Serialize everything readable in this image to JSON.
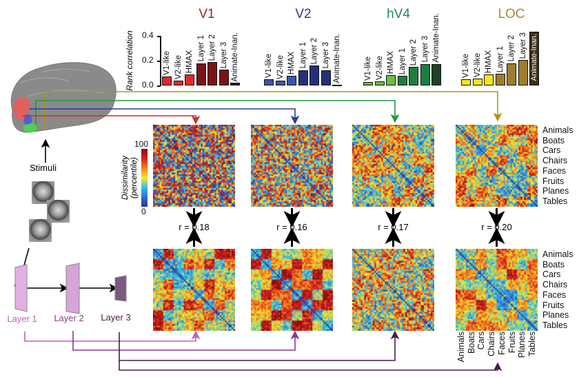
{
  "bar_charts": {
    "ylabel": "Rank correlation",
    "ticks": [
      "0.0",
      "0.2",
      "0.4"
    ],
    "ylim": [
      0,
      0.4
    ],
    "models": [
      "V1-like",
      "V2-like",
      "HMAX",
      "Layer 1",
      "Layer 2",
      "Layer 3",
      "Animate-Inan."
    ],
    "panels": [
      {
        "title": "V1",
        "title_color": "#8b2b2b",
        "values": [
          0.074,
          0.04,
          0.087,
          0.18,
          0.187,
          0.128,
          0.02
        ],
        "colors": [
          "#e8262a",
          "#e8262a",
          "#e8262a",
          "#7a1517",
          "#7a1517",
          "#7a1517",
          "#3a0c0c"
        ]
      },
      {
        "title": "V2",
        "title_color": "#2d3a8c",
        "values": [
          0.05,
          0.037,
          0.076,
          0.124,
          0.16,
          0.124,
          0.005
        ],
        "colors": [
          "#3c55a8",
          "#3c55a8",
          "#3c55a8",
          "#25307c",
          "#25307c",
          "#25307c",
          "#1a1f50"
        ]
      },
      {
        "title": "hV4",
        "title_color": "#1a8a55",
        "values": [
          0.028,
          0.033,
          0.083,
          0.076,
          0.15,
          0.174,
          0.174
        ],
        "colors": [
          "#6cbf45",
          "#6cbf45",
          "#6cbf45",
          "#1a8042",
          "#1a8042",
          "#1a8042",
          "#1f4222"
        ]
      },
      {
        "title": "LOC",
        "title_color": "#a88a3a",
        "values": [
          0.05,
          0.054,
          0.089,
          0.094,
          0.18,
          0.205,
          0.435
        ],
        "colors": [
          "#f5e51a",
          "#f5e51a",
          "#f5e51a",
          "#a07c2c",
          "#a07c2c",
          "#a07c2c",
          "#3d2e14"
        ]
      }
    ]
  },
  "colorbar": {
    "label_line1": "Dissimilarity",
    "label_line2": "(percentile)",
    "max": "100",
    "min": "0"
  },
  "correlations": [
    "r = 0.18",
    "r = 0.16",
    "r = 0.17",
    "r = 0.20"
  ],
  "categories": [
    "Animals",
    "Boats",
    "Cars",
    "Chairs",
    "Faces",
    "Fruits",
    "Planes",
    "Tables"
  ],
  "stimuli_label": "Stimuli",
  "layers": [
    {
      "label": "Layer 1",
      "color": "#c060c0"
    },
    {
      "label": "Layer 2",
      "color": "#8a3a8a"
    },
    {
      "label": "Layer 3",
      "color": "#4a1a4a"
    }
  ],
  "region_colors": {
    "V1": "#d42a2a",
    "V2": "#2a3a9a",
    "hV4": "#1a9a40",
    "LOC": "#a89a10"
  }
}
